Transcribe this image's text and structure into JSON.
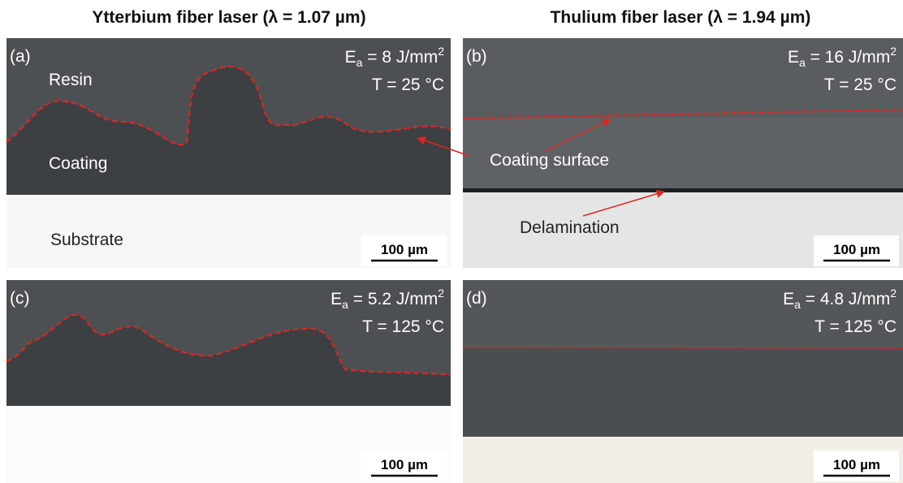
{
  "columns": [
    "Ytterbium fiber laser (λ = 1.07 µm)",
    "Thulium fiber laser (λ = 1.94 µm)"
  ],
  "panels": [
    {
      "label": "(a)",
      "energy": {
        "symbol": "E",
        "sub": "a",
        "value": " = 8 J/mm",
        "sup": "2"
      },
      "temperature": "T = 25 °C",
      "scale_bar": "100 µm",
      "annotations": [
        "Resin",
        "Coating",
        "Substrate"
      ]
    },
    {
      "label": "(b)",
      "energy": {
        "symbol": "E",
        "sub": "a",
        "value": " = 16 J/mm",
        "sup": "2"
      },
      "temperature": "T = 25 °C",
      "scale_bar": "100 µm",
      "annotations": [
        "Coating surface",
        "Delamination"
      ]
    },
    {
      "label": "(c)",
      "energy": {
        "symbol": "E",
        "sub": "a",
        "value": " = 5.2 J/mm",
        "sup": "2"
      },
      "temperature": "T = 125 °C",
      "scale_bar": "100 µm"
    },
    {
      "label": "(d)",
      "energy": {
        "symbol": "E",
        "sub": "a",
        "value": " = 4.8 J/mm",
        "sup": "2"
      },
      "temperature": "T = 125 °C",
      "scale_bar": "100 µm"
    }
  ]
}
